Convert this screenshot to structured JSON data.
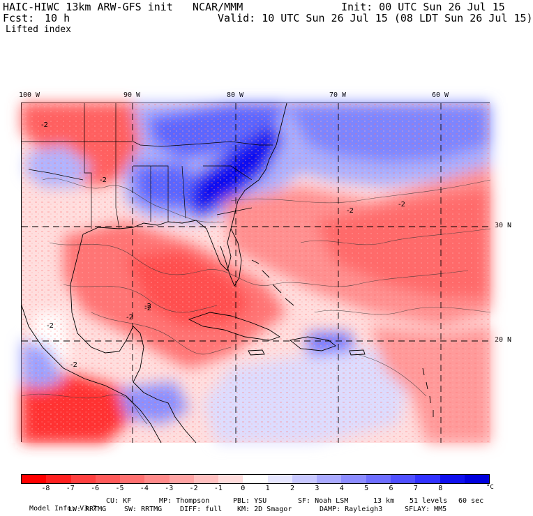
{
  "header": {
    "title_left": "HAIC-HIWC 13km ARW-GFS init",
    "title_center": "NCAR/MMM",
    "init": "Init: 00 UTC Sun 26 Jul 15",
    "fcst_label": "Fcst:",
    "fcst_value": "10 h",
    "valid": "Valid: 10 UTC Sun 26 Jul 15 (08 LDT Sun 26 Jul 15)",
    "field": "Lifted index"
  },
  "map": {
    "lon_labels": [
      "100 W",
      "90 W",
      "80 W",
      "70 W",
      "60 W"
    ],
    "lat_labels": [
      "30 N",
      "20 N"
    ],
    "contour_label": "-2"
  },
  "legend": {
    "ticks": [
      "-8",
      "-7",
      "-6",
      "-5",
      "-4",
      "-3",
      "-2",
      "-1",
      "0",
      "1",
      "2",
      "3",
      "4",
      "5",
      "6",
      "7",
      "8"
    ],
    "unit": "°C",
    "colors": [
      "#ff0000",
      "#ff2020",
      "#ff4040",
      "#ff5a5a",
      "#ff7070",
      "#ff8a8a",
      "#ffa4a4",
      "#ffc0c0",
      "#ffdcdc",
      "#ffffff",
      "#e6e6ff",
      "#c8c8ff",
      "#aaaaff",
      "#8c8cff",
      "#6e6eff",
      "#5050ff",
      "#3232ff",
      "#1010ee",
      "#0000dd"
    ]
  },
  "model_info": {
    "line1": [
      "Model Info: V3.7",
      "CU: KF",
      "MP: Thompson",
      "PBL: YSU",
      "SF: Noah LSM",
      "13 km",
      "51 levels",
      "60 sec"
    ],
    "line2": [
      "LW: RRTMG",
      "SW: RRTMG",
      "DIFF: full",
      "KM: 2D Smagor",
      "DAMP: Rayleigh3",
      "SFLAY: MM5"
    ]
  }
}
